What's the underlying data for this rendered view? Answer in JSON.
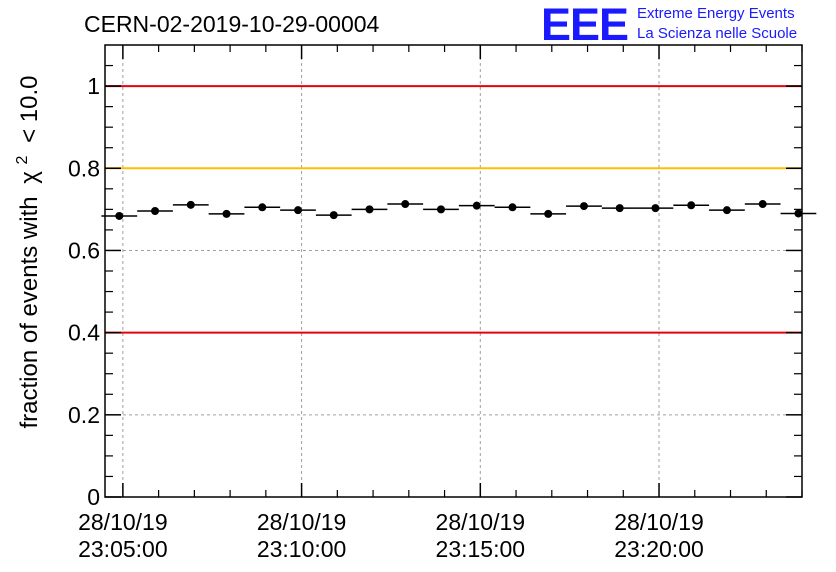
{
  "chart_data": {
    "type": "scatter",
    "title": "CERN-02-2019-10-29-00004",
    "xlabel": "",
    "ylabel": "fraction of events with",
    "ylabel_symbol": "χ",
    "ylabel_power": "2",
    "ylabel_suffix": "< 10.0",
    "ylim": [
      0,
      1.1
    ],
    "yticks": [
      0,
      0.2,
      0.4,
      0.6,
      0.8,
      1
    ],
    "ytick_labels": [
      "0",
      "0.2",
      "0.4",
      "0.6",
      "0.8",
      "1"
    ],
    "grid": true,
    "xlim_minutes": [
      -0.5,
      19.0
    ],
    "xticks_minutes": [
      0,
      5,
      10,
      15
    ],
    "xtick_labels": [
      {
        "date": "28/10/19",
        "time": "23:05:00"
      },
      {
        "date": "28/10/19",
        "time": "23:10:00"
      },
      {
        "date": "28/10/19",
        "time": "23:15:00"
      },
      {
        "date": "28/10/19",
        "time": "23:20:00"
      }
    ],
    "bin_width_minutes": 1,
    "series": [
      {
        "name": "fraction",
        "x_minutes": [
          -0.1,
          0.9,
          1.9,
          2.9,
          3.9,
          4.9,
          5.9,
          6.9,
          7.9,
          8.9,
          9.9,
          10.9,
          11.9,
          12.9,
          13.9,
          14.9,
          15.9,
          16.9,
          17.9,
          18.9
        ],
        "values": [
          0.684,
          0.696,
          0.711,
          0.689,
          0.705,
          0.698,
          0.686,
          0.7,
          0.713,
          0.7,
          0.709,
          0.705,
          0.689,
          0.708,
          0.703,
          0.703,
          0.71,
          0.698,
          0.713,
          0.69
        ]
      }
    ],
    "reference_lines": [
      {
        "value": 1.0,
        "color": "#e8000b"
      },
      {
        "value": 0.8,
        "color": "#ffbf00"
      },
      {
        "value": 0.4,
        "color": "#e8000b"
      }
    ]
  },
  "logo": {
    "text": "EEE",
    "line1": "Extreme Energy Events",
    "line2": "La Scienza nelle Scuole",
    "color": "#1a1aff"
  }
}
